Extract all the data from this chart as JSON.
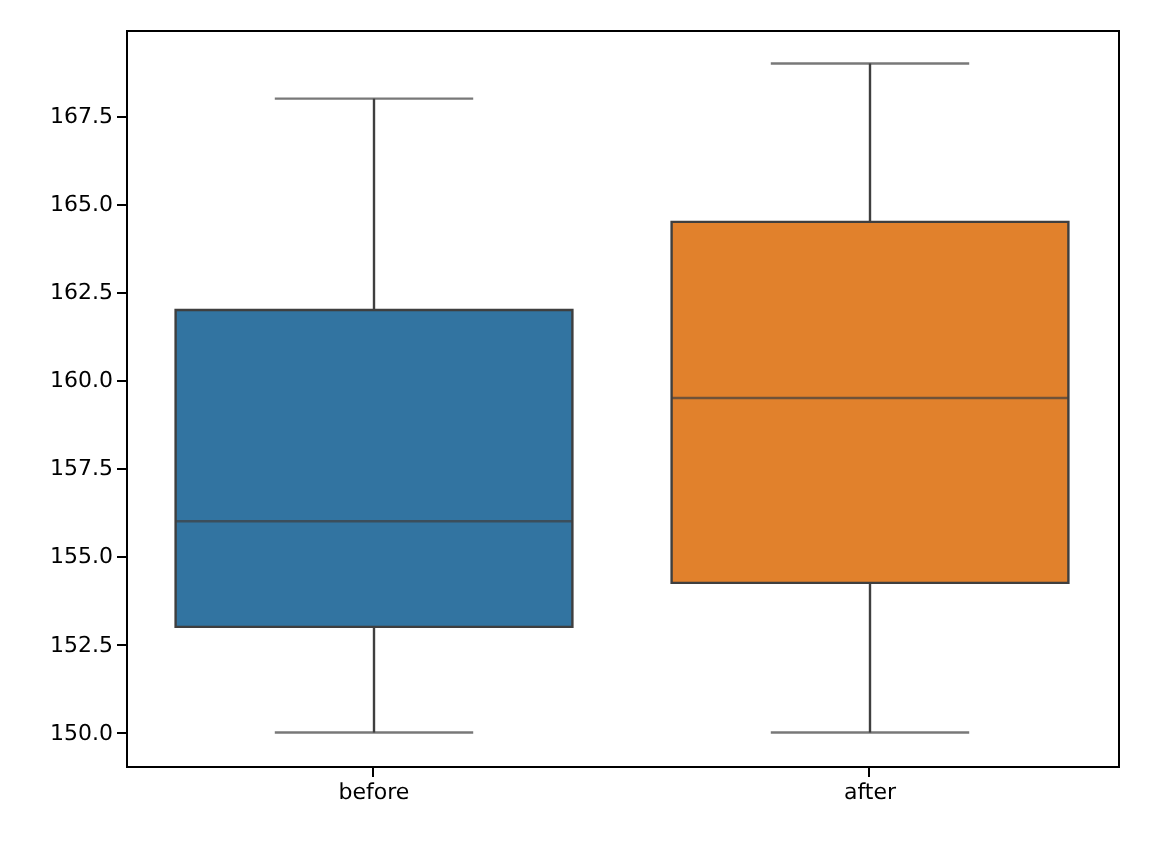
{
  "chart_data": {
    "type": "box",
    "categories": [
      "before",
      "after"
    ],
    "boxes": [
      {
        "low": 150,
        "q1": 153,
        "median": 156,
        "q3": 162,
        "high": 168
      },
      {
        "low": 150,
        "q1": 154.25,
        "median": 159.5,
        "q3": 164.5,
        "high": 169
      }
    ],
    "colors": [
      "#3274a1",
      "#e1812c"
    ],
    "ylim": [
      149.05,
      169.95
    ],
    "yticks": [
      {
        "value": 150,
        "label": "150.0"
      },
      {
        "value": 152.5,
        "label": "152.5"
      },
      {
        "value": 155,
        "label": "155.0"
      },
      {
        "value": 157.5,
        "label": "157.5"
      },
      {
        "value": 160,
        "label": "160.0"
      },
      {
        "value": 162.5,
        "label": "162.5"
      },
      {
        "value": 165,
        "label": "165.0"
      },
      {
        "value": 167.5,
        "label": "167.5"
      }
    ],
    "grid": false,
    "legend": false
  }
}
